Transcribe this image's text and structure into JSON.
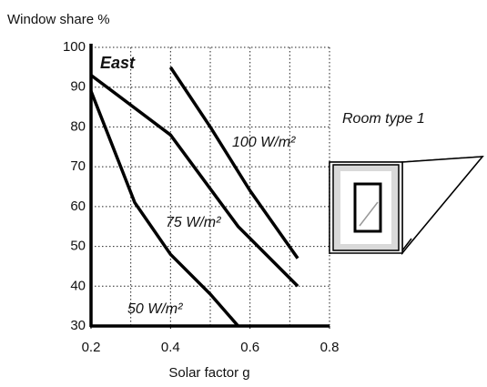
{
  "chart_data": {
    "type": "line",
    "y_label": "Window share %",
    "x_label": "Solar factor g",
    "panel_label": "East",
    "room_label": "Room type 1",
    "xlim": [
      0.2,
      0.8
    ],
    "xticks": [
      0.2,
      0.4,
      0.6,
      0.8
    ],
    "xgrid": [
      0.3,
      0.4,
      0.5,
      0.6,
      0.7,
      0.8
    ],
    "ylim": [
      30,
      100
    ],
    "yticks": [
      30,
      40,
      50,
      60,
      70,
      80,
      90,
      100
    ],
    "grid": true,
    "series": [
      {
        "name": "100 W/m²",
        "color": "#000000",
        "x": [
          0.4,
          0.5,
          0.6,
          0.72
        ],
        "values": [
          95,
          80,
          64,
          47
        ]
      },
      {
        "name": "75 W/m²",
        "color": "#000000",
        "x": [
          0.2,
          0.4,
          0.57,
          0.72
        ],
        "values": [
          93,
          78,
          55,
          40
        ]
      },
      {
        "name": "50 W/m²",
        "color": "#000000",
        "x": [
          0.2,
          0.31,
          0.4,
          0.5,
          0.57
        ],
        "values": [
          89,
          61,
          48,
          38,
          30
        ]
      }
    ]
  }
}
